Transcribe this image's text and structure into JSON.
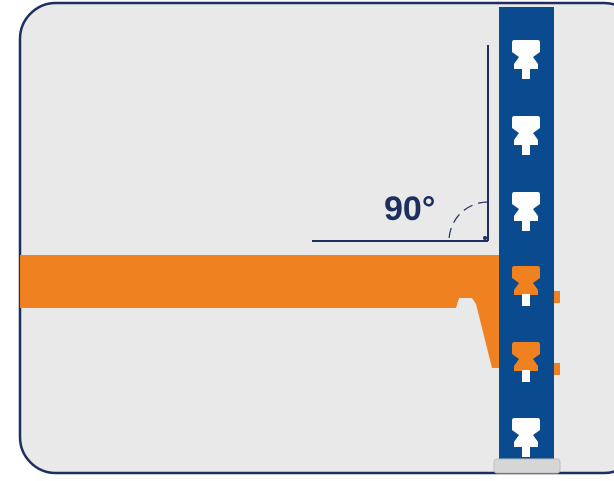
{
  "diagram": {
    "angle_label": "90°",
    "colors": {
      "background": "#e9e9e9",
      "frame_stroke": "#1c2f5e",
      "upright": "#0a4a8f",
      "slot": "#ffffff",
      "beam": "#f08120",
      "guide_line": "#1c2f5e",
      "foot_plate": "#d6d6d6"
    },
    "components": {
      "upright": "upright-post",
      "beam": "shelf-beam",
      "slots_total": 6,
      "slots_engaged": 2
    }
  }
}
